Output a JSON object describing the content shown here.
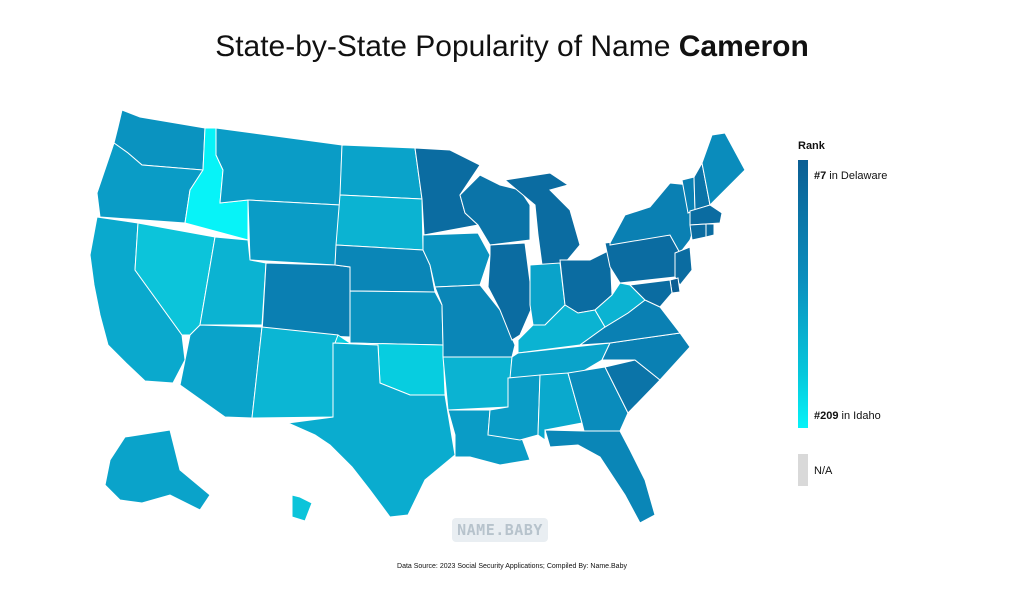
{
  "title": {
    "prefix": "State-by-State Popularity of Name ",
    "name": "Cameron"
  },
  "legend": {
    "title": "Rank",
    "top_rank": "#7",
    "top_label": " in Delaware",
    "bottom_rank": "#209",
    "bottom_label": " in Idaho",
    "na_label": "N/A",
    "colors": {
      "high": "#0b5e93",
      "mid": "#0a8fbe",
      "low": "#07f3f8",
      "na": "#d9d9d9"
    }
  },
  "watermark": "NAME.BABY",
  "source": "Data Source: 2023 Social Security Applications; Compiled By: Name.Baby",
  "chart_data": {
    "type": "choropleth",
    "metric": "Rank",
    "states": [
      {
        "state": "Washington",
        "color": "#0a93c0"
      },
      {
        "state": "Oregon",
        "color": "#0a9cc6"
      },
      {
        "state": "California",
        "color": "#0aa9cd"
      },
      {
        "state": "Nevada",
        "color": "#0cc4da"
      },
      {
        "state": "Idaho",
        "color": "#07f3f8"
      },
      {
        "state": "Montana",
        "color": "#0a9cc6"
      },
      {
        "state": "Wyoming",
        "color": "#0a9cc6"
      },
      {
        "state": "Utah",
        "color": "#0bb3d2"
      },
      {
        "state": "Colorado",
        "color": "#0a7fb2"
      },
      {
        "state": "Arizona",
        "color": "#0aa3ca"
      },
      {
        "state": "New Mexico",
        "color": "#0bb6d4"
      },
      {
        "state": "North Dakota",
        "color": "#0aa3ca"
      },
      {
        "state": "South Dakota",
        "color": "#0bb3d2"
      },
      {
        "state": "Nebraska",
        "color": "#0a86b7"
      },
      {
        "state": "Kansas",
        "color": "#0a93c0"
      },
      {
        "state": "Oklahoma",
        "color": "#07cde0"
      },
      {
        "state": "Texas",
        "color": "#0aaccf"
      },
      {
        "state": "Minnesota",
        "color": "#0b6ca1"
      },
      {
        "state": "Iowa",
        "color": "#0a93c0"
      },
      {
        "state": "Missouri",
        "color": "#0a86b7"
      },
      {
        "state": "Arkansas",
        "color": "#0bb3d2"
      },
      {
        "state": "Louisiana",
        "color": "#0a9cc6"
      },
      {
        "state": "Wisconsin",
        "color": "#0b74a8"
      },
      {
        "state": "Illinois",
        "color": "#0b6ca1"
      },
      {
        "state": "Michigan",
        "color": "#0b6ca1"
      },
      {
        "state": "Indiana",
        "color": "#0aa3ca"
      },
      {
        "state": "Ohio",
        "color": "#0b6ca1"
      },
      {
        "state": "Kentucky",
        "color": "#0bb3d2"
      },
      {
        "state": "Tennessee",
        "color": "#0aa3ca"
      },
      {
        "state": "Mississippi",
        "color": "#0a9cc6"
      },
      {
        "state": "Alabama",
        "color": "#0aa9cd"
      },
      {
        "state": "Georgia",
        "color": "#0a8cbc"
      },
      {
        "state": "Florida",
        "color": "#0a86b7"
      },
      {
        "state": "South Carolina",
        "color": "#0b74a8"
      },
      {
        "state": "North Carolina",
        "color": "#0a80b3"
      },
      {
        "state": "Virginia",
        "color": "#0a80b3"
      },
      {
        "state": "West Virginia",
        "color": "#0bb3d2"
      },
      {
        "state": "Pennsylvania",
        "color": "#0b6ca1"
      },
      {
        "state": "New York",
        "color": "#0a80b3"
      },
      {
        "state": "Vermont",
        "color": "#0a80b3"
      },
      {
        "state": "New Hampshire",
        "color": "#0b74a8"
      },
      {
        "state": "Maine",
        "color": "#0a8cbc"
      },
      {
        "state": "Massachusetts",
        "color": "#0b6ca1"
      },
      {
        "state": "Connecticut",
        "color": "#0b6ca1"
      },
      {
        "state": "Rhode Island",
        "color": "#0b6ca1"
      },
      {
        "state": "New Jersey",
        "color": "#0b6ca1"
      },
      {
        "state": "Delaware",
        "color": "#0b5e93"
      },
      {
        "state": "Maryland",
        "color": "#0b6ca1"
      },
      {
        "state": "Alaska",
        "color": "#0aa3ca"
      },
      {
        "state": "Hawaii",
        "color": "#0cc4da"
      }
    ]
  }
}
